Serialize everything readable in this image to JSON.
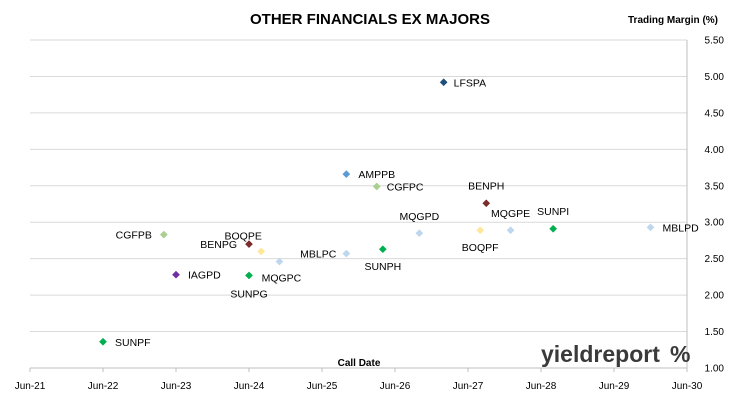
{
  "chart_data": {
    "type": "scatter",
    "title": "OTHER FINANCIALS EX MAJORS",
    "xlabel": "Call Date",
    "ylabel": "Trading Margin (%)",
    "x_ticks": [
      "Jun-21",
      "Jun-22",
      "Jun-23",
      "Jun-24",
      "Jun-25",
      "Jun-26",
      "Jun-27",
      "Jun-28",
      "Jun-29",
      "Jun-30"
    ],
    "xlim": [
      "Jun-21",
      "Jun-30"
    ],
    "y_ticks": [
      "1.00",
      "1.50",
      "2.00",
      "2.50",
      "3.00",
      "3.50",
      "4.00",
      "4.50",
      "5.00",
      "5.50"
    ],
    "ylim": [
      1.0,
      5.5
    ],
    "y_axis_side": "right",
    "grid": "horizontal",
    "points": [
      {
        "label": "SUNPF",
        "x": "Jun-22",
        "y": 1.36,
        "color": "#00b050",
        "marker": "diamond"
      },
      {
        "label": "CGFPB",
        "x": "Apr-23",
        "y": 2.83,
        "color": "#a9d08e",
        "marker": "diamond"
      },
      {
        "label": "IAGPD",
        "x": "Jun-23",
        "y": 2.28,
        "color": "#7030a0",
        "marker": "diamond"
      },
      {
        "label": "BENPG",
        "x": "Jun-24",
        "y": 2.7,
        "color": "#7b2c2c",
        "marker": "diamond"
      },
      {
        "label": "SUNPG",
        "x": "Jun-24",
        "y": 2.27,
        "color": "#00b050",
        "marker": "diamond"
      },
      {
        "label": "BOQPE",
        "x": "Aug-24",
        "y": 2.6,
        "color": "#ffe699",
        "marker": "diamond"
      },
      {
        "label": "MQGPC",
        "x": "Nov-24",
        "y": 2.46,
        "color": "#bdd7ee",
        "marker": "diamond"
      },
      {
        "label": "MBLPC",
        "x": "Oct-25",
        "y": 2.57,
        "color": "#bdd7ee",
        "marker": "diamond"
      },
      {
        "label": "AMPPB",
        "x": "Oct-25",
        "y": 3.66,
        "color": "#5b9bd5",
        "marker": "diamond"
      },
      {
        "label": "CGFPC",
        "x": "Mar-26",
        "y": 3.49,
        "color": "#a9d08e",
        "marker": "diamond"
      },
      {
        "label": "SUNPH",
        "x": "Apr-26",
        "y": 2.63,
        "color": "#00b050",
        "marker": "diamond"
      },
      {
        "label": "MQGPD",
        "x": "Oct-26",
        "y": 2.85,
        "color": "#bdd7ee",
        "marker": "diamond"
      },
      {
        "label": "LFSPA",
        "x": "Feb-27",
        "y": 4.92,
        "color": "#1f4e79",
        "marker": "diamond"
      },
      {
        "label": "BOQPF",
        "x": "Aug-27",
        "y": 2.89,
        "color": "#ffe699",
        "marker": "diamond"
      },
      {
        "label": "BENPH",
        "x": "Sep-27",
        "y": 3.26,
        "color": "#7b2c2c",
        "marker": "diamond"
      },
      {
        "label": "MQGPE",
        "x": "Jan-28",
        "y": 2.89,
        "color": "#bdd7ee",
        "marker": "diamond"
      },
      {
        "label": "SUNPI",
        "x": "Aug-28",
        "y": 2.91,
        "color": "#00b050",
        "marker": "diamond"
      },
      {
        "label": "MBLPD",
        "x": "Dec-29",
        "y": 2.93,
        "color": "#bdd7ee",
        "marker": "diamond"
      }
    ]
  },
  "logo": {
    "text": "yieldreport",
    "symbol": "%",
    "word_color": "#3a3a3a",
    "symbol_color": "#c00000"
  }
}
